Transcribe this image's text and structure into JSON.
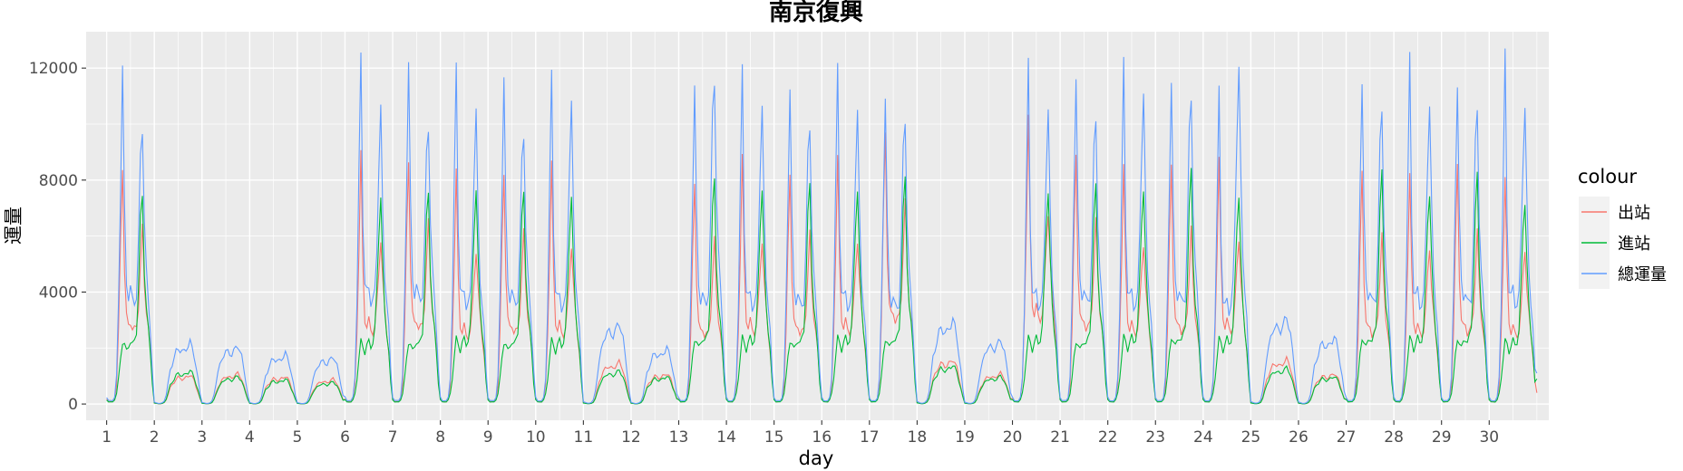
{
  "chart_data": {
    "type": "line",
    "title": "南京復興",
    "xlabel": "day",
    "ylabel": "運量",
    "xlim": [
      0.57,
      31.25
    ],
    "ylim": [
      -580,
      13300
    ],
    "x_ticks": [
      "1",
      "2",
      "3",
      "4",
      "5",
      "6",
      "7",
      "8",
      "9",
      "10",
      "11",
      "12",
      "13",
      "14",
      "15",
      "16",
      "17",
      "18",
      "19",
      "20",
      "21",
      "22",
      "23",
      "24",
      "25",
      "26",
      "27",
      "28",
      "29",
      "30"
    ],
    "y_ticks": [
      "0",
      "4000",
      "8000",
      "12000"
    ],
    "grid": true,
    "legend": {
      "title": "colour",
      "position": "right"
    },
    "x_unit": "day (hourly samples)",
    "series": [
      {
        "name": "出站",
        "color": "#F8766D",
        "daily_peaks": [
          {
            "day": 1,
            "am": 8800,
            "pm": 2600
          },
          {
            "day": 2,
            "am": 1000,
            "pm": 1050
          },
          {
            "day": 3,
            "am": 1000,
            "pm": 1100
          },
          {
            "day": 4,
            "am": 900,
            "pm": 1000
          },
          {
            "day": 5,
            "am": 800,
            "pm": 900
          },
          {
            "day": 6,
            "am": 8700,
            "pm": 2200
          },
          {
            "day": 7,
            "am": 9000,
            "pm": 2100
          },
          {
            "day": 8,
            "am": 8100,
            "pm": 2200
          },
          {
            "day": 9,
            "am": 8500,
            "pm": 2300
          },
          {
            "day": 10,
            "am": 8400,
            "pm": 3000
          },
          {
            "day": 11,
            "am": 1400,
            "pm": 1500
          },
          {
            "day": 12,
            "am": 1100,
            "pm": 1000
          },
          {
            "day": 13,
            "am": 8100,
            "pm": 2300
          },
          {
            "day": 14,
            "am": 8700,
            "pm": 2500
          },
          {
            "day": 15,
            "am": 8400,
            "pm": 2400
          },
          {
            "day": 16,
            "am": 8700,
            "pm": 2600
          },
          {
            "day": 17,
            "am": 9900,
            "pm": 2900
          },
          {
            "day": 18,
            "am": 1500,
            "pm": 1600
          },
          {
            "day": 19,
            "am": 1100,
            "pm": 1000
          },
          {
            "day": 20,
            "am": 10200,
            "pm": 2500
          },
          {
            "day": 21,
            "am": 9000,
            "pm": 2500
          },
          {
            "day": 22,
            "am": 8500,
            "pm": 2600
          },
          {
            "day": 23,
            "am": 8600,
            "pm": 2800
          },
          {
            "day": 24,
            "am": 8800,
            "pm": 3300
          },
          {
            "day": 25,
            "am": 1400,
            "pm": 1600
          },
          {
            "day": 26,
            "am": 1100,
            "pm": 1100
          },
          {
            "day": 27,
            "am": 8300,
            "pm": 2500
          },
          {
            "day": 28,
            "am": 8300,
            "pm": 2600
          },
          {
            "day": 29,
            "am": 8500,
            "pm": 2600
          },
          {
            "day": 30,
            "am": 8200,
            "pm": 3300
          }
        ]
      },
      {
        "name": "進站",
        "color": "#00BA38",
        "daily_peaks": [
          {
            "day": 1,
            "am": 1500,
            "pm": 7500
          },
          {
            "day": 2,
            "am": 700,
            "pm": 1200
          },
          {
            "day": 3,
            "am": 700,
            "pm": 1000
          },
          {
            "day": 4,
            "am": 600,
            "pm": 900
          },
          {
            "day": 5,
            "am": 600,
            "pm": 800
          },
          {
            "day": 6,
            "am": 1500,
            "pm": 7400
          },
          {
            "day": 7,
            "am": 1700,
            "pm": 7500
          },
          {
            "day": 8,
            "am": 1600,
            "pm": 7700
          },
          {
            "day": 9,
            "am": 1700,
            "pm": 7500
          },
          {
            "day": 10,
            "am": 1800,
            "pm": 7500
          },
          {
            "day": 11,
            "am": 1000,
            "pm": 1200
          },
          {
            "day": 12,
            "am": 800,
            "pm": 1000
          },
          {
            "day": 13,
            "am": 1600,
            "pm": 7900
          },
          {
            "day": 14,
            "am": 1700,
            "pm": 7800
          },
          {
            "day": 15,
            "am": 1700,
            "pm": 7700
          },
          {
            "day": 16,
            "am": 1800,
            "pm": 7800
          },
          {
            "day": 17,
            "am": 1800,
            "pm": 7900
          },
          {
            "day": 18,
            "am": 1100,
            "pm": 1400
          },
          {
            "day": 19,
            "am": 800,
            "pm": 1000
          },
          {
            "day": 20,
            "am": 1700,
            "pm": 7800
          },
          {
            "day": 21,
            "am": 1800,
            "pm": 7600
          },
          {
            "day": 22,
            "am": 1700,
            "pm": 7900
          },
          {
            "day": 23,
            "am": 1800,
            "pm": 8100
          },
          {
            "day": 24,
            "am": 1800,
            "pm": 7700
          },
          {
            "day": 25,
            "am": 1000,
            "pm": 1300
          },
          {
            "day": 26,
            "am": 800,
            "pm": 1000
          },
          {
            "day": 27,
            "am": 1700,
            "pm": 8000
          },
          {
            "day": 28,
            "am": 1700,
            "pm": 7800
          },
          {
            "day": 29,
            "am": 1800,
            "pm": 7900
          },
          {
            "day": 30,
            "am": 1700,
            "pm": 7500
          }
        ]
      },
      {
        "name": "總運量",
        "color": "#619CFF",
        "daily_peaks": [
          {
            "day": 1,
            "am": 12200,
            "pm": 10200
          },
          {
            "day": 2,
            "am": 1800,
            "pm": 2200
          },
          {
            "day": 3,
            "am": 1700,
            "pm": 2100
          },
          {
            "day": 4,
            "am": 1500,
            "pm": 1800
          },
          {
            "day": 5,
            "am": 1400,
            "pm": 1700
          },
          {
            "day": 6,
            "am": 12300,
            "pm": 10200
          },
          {
            "day": 7,
            "am": 12500,
            "pm": 10200
          },
          {
            "day": 8,
            "am": 11900,
            "pm": 10100
          },
          {
            "day": 9,
            "am": 12000,
            "pm": 9900
          },
          {
            "day": 10,
            "am": 11600,
            "pm": 10400
          },
          {
            "day": 11,
            "am": 2400,
            "pm": 2900
          },
          {
            "day": 12,
            "am": 1800,
            "pm": 2000
          },
          {
            "day": 13,
            "am": 11800,
            "pm": 11800
          },
          {
            "day": 14,
            "am": 11700,
            "pm": 10300
          },
          {
            "day": 15,
            "am": 11700,
            "pm": 10100
          },
          {
            "day": 16,
            "am": 11700,
            "pm": 10200
          },
          {
            "day": 17,
            "am": 11400,
            "pm": 10300
          },
          {
            "day": 18,
            "am": 2700,
            "pm": 3000
          },
          {
            "day": 19,
            "am": 1900,
            "pm": 2300
          },
          {
            "day": 20,
            "am": 11800,
            "pm": 10300
          },
          {
            "day": 21,
            "am": 12200,
            "pm": 10300
          },
          {
            "day": 22,
            "am": 11800,
            "pm": 10900
          },
          {
            "day": 23,
            "am": 12100,
            "pm": 11000
          },
          {
            "day": 24,
            "am": 10800,
            "pm": 11900
          },
          {
            "day": 25,
            "am": 2600,
            "pm": 3100
          },
          {
            "day": 26,
            "am": 2000,
            "pm": 2400
          },
          {
            "day": 27,
            "am": 12100,
            "pm": 10500
          },
          {
            "day": 28,
            "am": 11900,
            "pm": 10600
          },
          {
            "day": 29,
            "am": 12000,
            "pm": 10500
          },
          {
            "day": 30,
            "am": 12000,
            "pm": 10600
          }
        ]
      }
    ]
  }
}
